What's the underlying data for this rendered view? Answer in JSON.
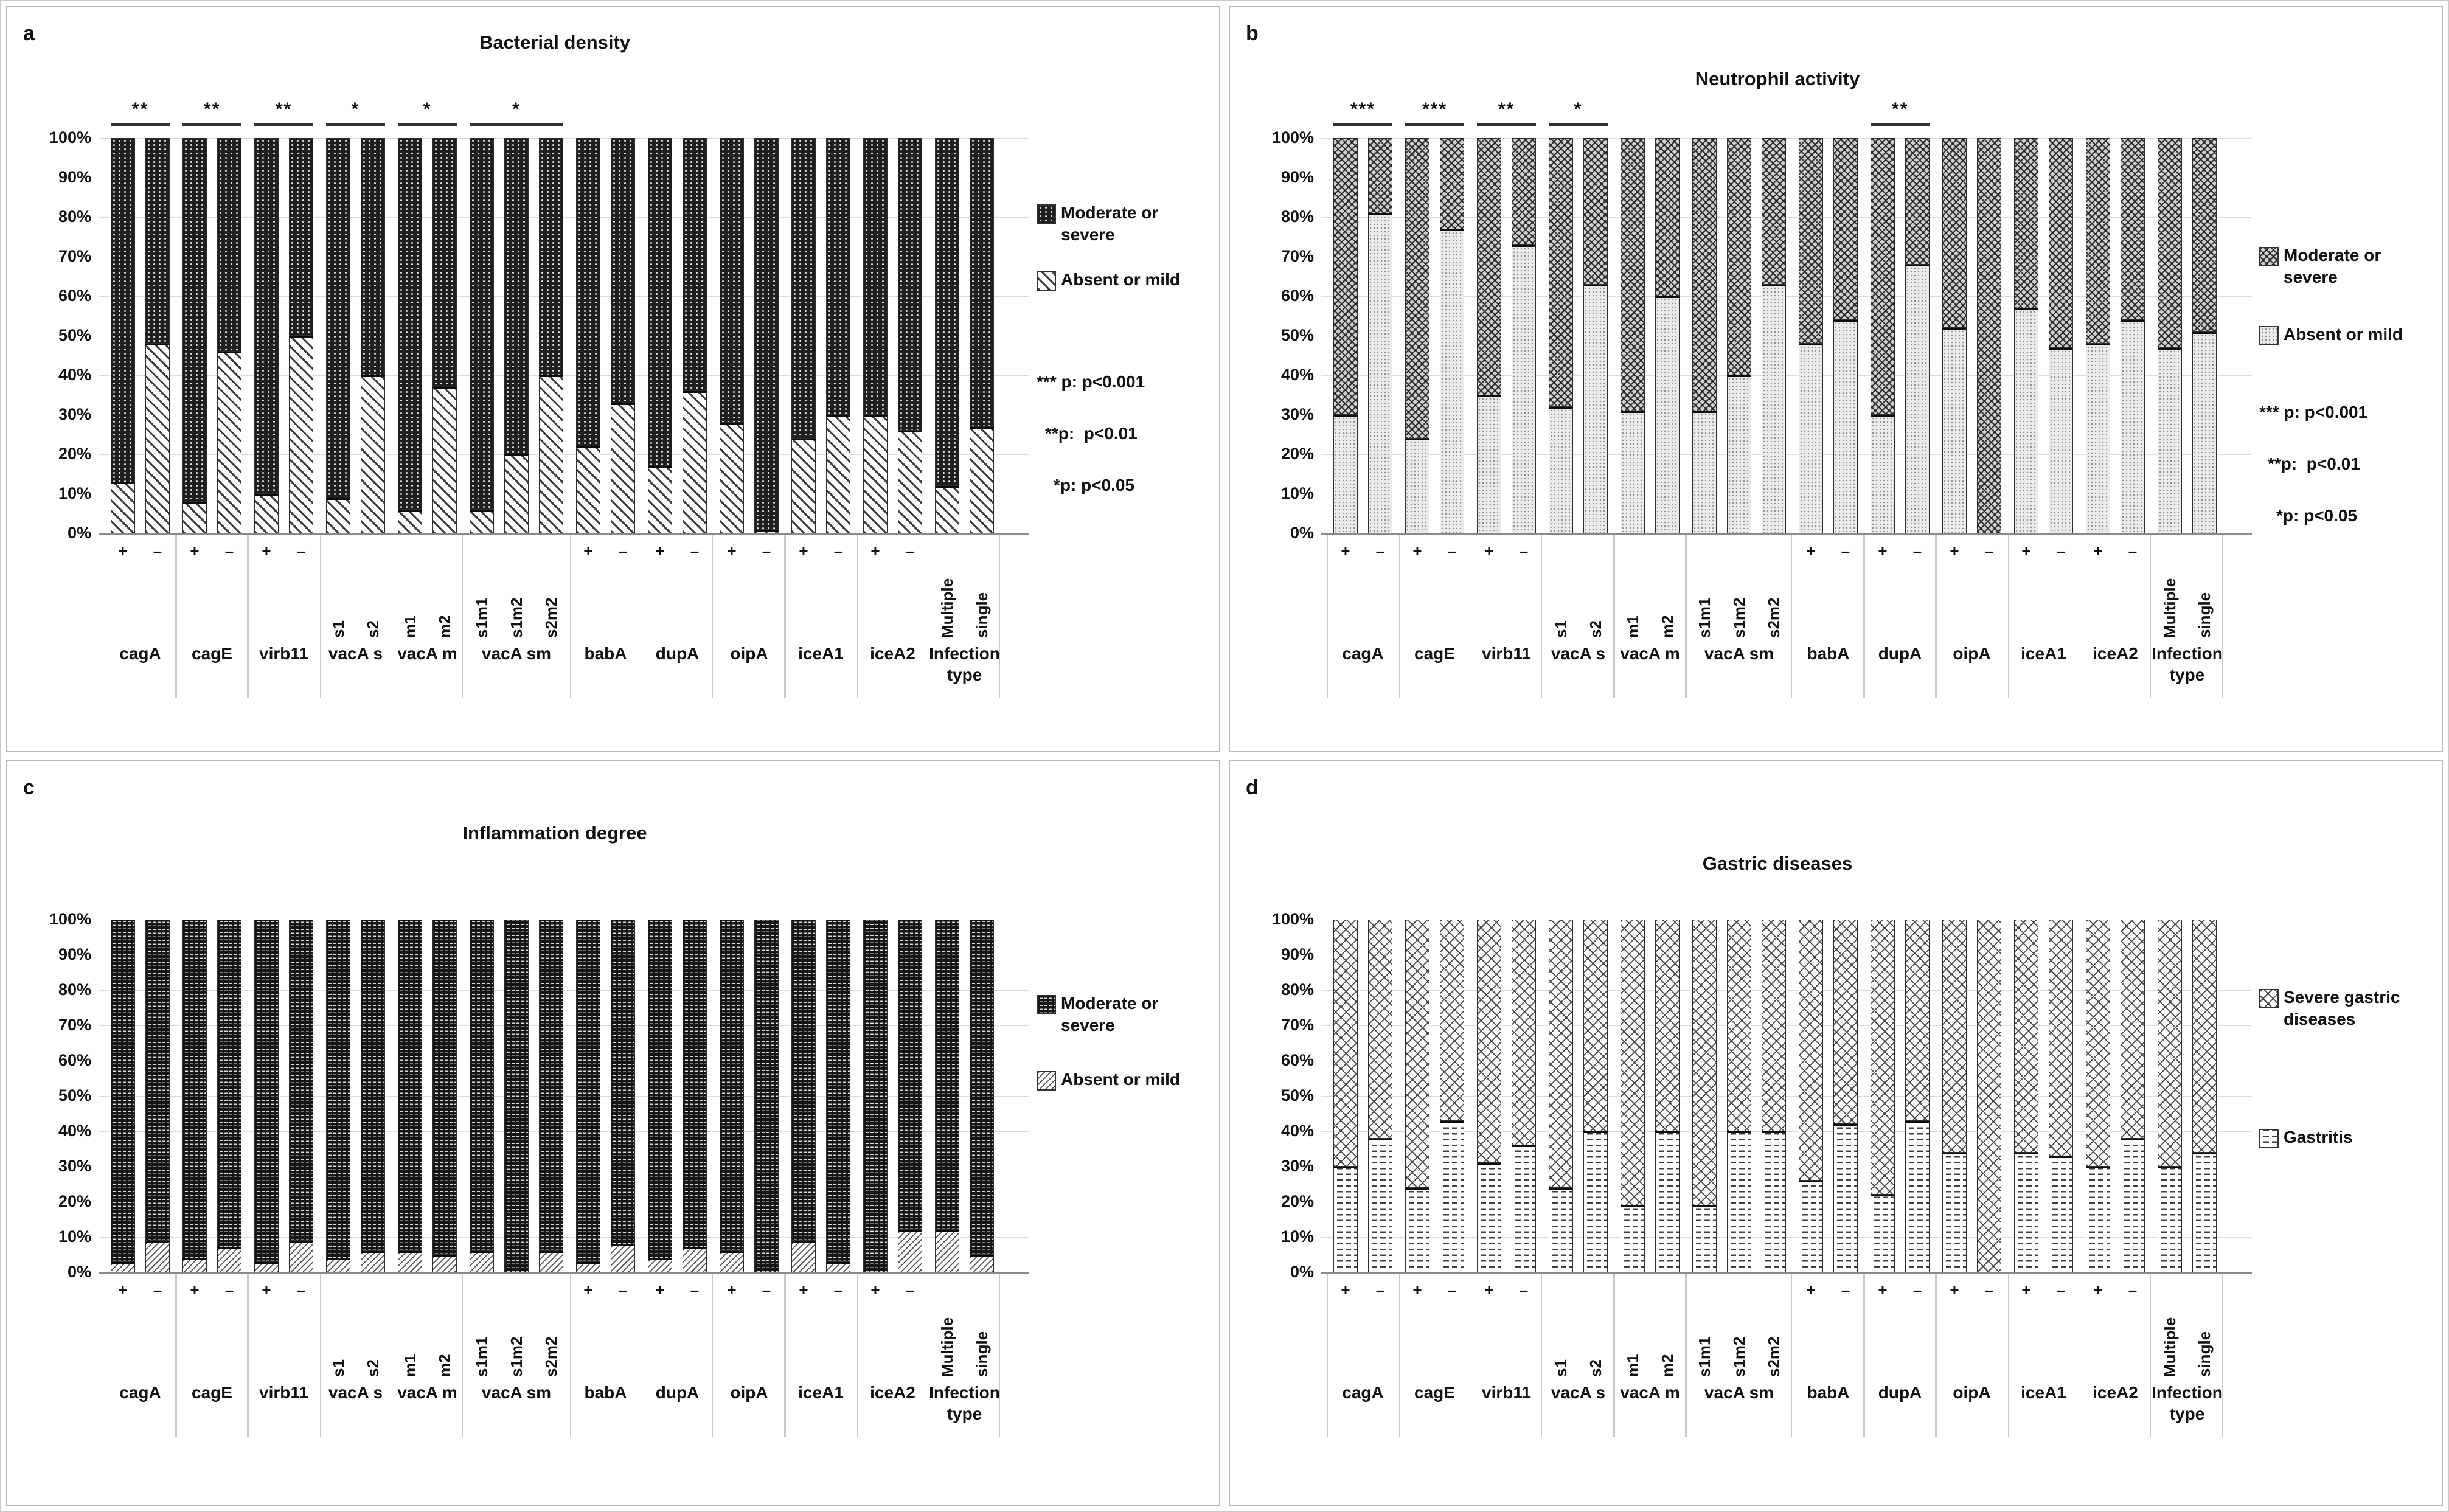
{
  "figure": {
    "description": "Four stacked bar chart panels comparing H. pylori genotypes",
    "y_ticks": [
      "100%",
      "90%",
      "80%",
      "70%",
      "60%",
      "50%",
      "40%",
      "30%",
      "20%",
      "10%",
      "0%"
    ],
    "stats_notes": [
      "*** p: p<0.001",
      "**p:  p<0.01",
      "*p: p<0.05"
    ]
  },
  "chart_data": [
    {
      "panel": "a",
      "type": "bar",
      "stacked": true,
      "title": "Bacterial density",
      "ylim": [
        0,
        100
      ],
      "ytick_step": 10,
      "grid": true,
      "legend_position": "right",
      "categories": [
        "cagA +",
        "cagA -",
        "cagE +",
        "cagE -",
        "virb11 +",
        "virb11 -",
        "vacA s s1",
        "vacA s s2",
        "vacA m m1",
        "vacA m m2",
        "vacA sm s1m1",
        "vacA sm s1m2",
        "vacA sm s2m2",
        "babA +",
        "babA -",
        "dupA +",
        "dupA -",
        "oipA +",
        "oipA -",
        "iceA1 +",
        "iceA1 -",
        "iceA2 +",
        "iceA2 -",
        "Multiple",
        "single"
      ],
      "groups": [
        {
          "label": "cagA",
          "subs": [
            "+",
            "–"
          ]
        },
        {
          "label": "cagE",
          "subs": [
            "+",
            "–"
          ]
        },
        {
          "label": "virb11",
          "subs": [
            "+",
            "–"
          ]
        },
        {
          "label": "vacA s",
          "subs": [
            "s1",
            "s2"
          ]
        },
        {
          "label": "vacA m",
          "subs": [
            "m1",
            "m2"
          ]
        },
        {
          "label": "vacA sm",
          "subs": [
            "s1m1",
            "s1m2",
            "s2m2"
          ]
        },
        {
          "label": "babA",
          "subs": [
            "+",
            "–"
          ]
        },
        {
          "label": "dupA",
          "subs": [
            "+",
            "–"
          ]
        },
        {
          "label": "oipA",
          "subs": [
            "+",
            "–"
          ]
        },
        {
          "label": "iceA1",
          "subs": [
            "+",
            "–"
          ]
        },
        {
          "label": "iceA2",
          "subs": [
            "+",
            "–"
          ]
        },
        {
          "label": "Infection type",
          "subs": [
            "Multiple",
            "single"
          ]
        }
      ],
      "series": [
        {
          "name": "Absent or mild",
          "pattern": "diag-hatch",
          "values": [
            13,
            48,
            8,
            46,
            10,
            50,
            9,
            40,
            6,
            37,
            6,
            20,
            40,
            22,
            33,
            17,
            36,
            28,
            1,
            24,
            30,
            30,
            26,
            12,
            27
          ]
        },
        {
          "name": "Moderate or severe",
          "pattern": "dark-dotted",
          "values": [
            87,
            52,
            92,
            54,
            90,
            50,
            91,
            60,
            94,
            63,
            94,
            80,
            60,
            78,
            67,
            83,
            64,
            72,
            99,
            76,
            70,
            70,
            74,
            88,
            73
          ]
        }
      ],
      "legend": [
        {
          "pattern": "dark-dotted",
          "label": "Moderate or severe"
        },
        {
          "pattern": "diag-hatch",
          "label": "Absent or mild"
        }
      ],
      "stats_notes": [
        "*** p: p<0.001",
        "**p:  p<0.01",
        "*p: p<0.05"
      ],
      "significance": [
        {
          "stars": "**",
          "from": 0,
          "to": 1
        },
        {
          "stars": "**",
          "from": 2,
          "to": 3
        },
        {
          "stars": "**",
          "from": 4,
          "to": 5
        },
        {
          "stars": "*",
          "from": 6,
          "to": 7
        },
        {
          "stars": "*",
          "from": 8,
          "to": 9
        },
        {
          "stars": "*",
          "from": 10,
          "to": 12
        }
      ]
    },
    {
      "panel": "b",
      "type": "bar",
      "stacked": true,
      "title": "Neutrophil activity",
      "ylim": [
        0,
        100
      ],
      "ytick_step": 10,
      "grid": true,
      "legend_position": "right",
      "categories": [
        "cagA +",
        "cagA -",
        "cagE +",
        "cagE -",
        "virb11 +",
        "virb11 -",
        "vacA s s1",
        "vacA s s2",
        "vacA m m1",
        "vacA m m2",
        "vacA sm s1m1",
        "vacA sm s1m2",
        "vacA sm s2m2",
        "babA +",
        "babA -",
        "dupA +",
        "dupA -",
        "oipA +",
        "oipA -",
        "iceA1 +",
        "iceA1 -",
        "iceA2 +",
        "iceA2 -",
        "Multiple",
        "single"
      ],
      "groups": [
        {
          "label": "cagA",
          "subs": [
            "+",
            "–"
          ]
        },
        {
          "label": "cagE",
          "subs": [
            "+",
            "–"
          ]
        },
        {
          "label": "virb11",
          "subs": [
            "+",
            "–"
          ]
        },
        {
          "label": "vacA s",
          "subs": [
            "s1",
            "s2"
          ]
        },
        {
          "label": "vacA m",
          "subs": [
            "m1",
            "m2"
          ]
        },
        {
          "label": "vacA sm",
          "subs": [
            "s1m1",
            "s1m2",
            "s2m2"
          ]
        },
        {
          "label": "babA",
          "subs": [
            "+",
            "–"
          ]
        },
        {
          "label": "dupA",
          "subs": [
            "+",
            "–"
          ]
        },
        {
          "label": "oipA",
          "subs": [
            "+",
            "–"
          ]
        },
        {
          "label": "iceA1",
          "subs": [
            "+",
            "–"
          ]
        },
        {
          "label": "iceA2",
          "subs": [
            "+",
            "–"
          ]
        },
        {
          "label": "Infection type",
          "subs": [
            "Multiple",
            "single"
          ]
        }
      ],
      "series": [
        {
          "name": "Absent or mild",
          "pattern": "light-dotted",
          "values": [
            30,
            81,
            24,
            77,
            35,
            73,
            32,
            63,
            31,
            60,
            31,
            40,
            63,
            48,
            54,
            30,
            68,
            52,
            0,
            57,
            47,
            48,
            54,
            47,
            51
          ]
        },
        {
          "name": "Moderate or severe",
          "pattern": "diamond-check",
          "values": [
            70,
            19,
            76,
            23,
            65,
            27,
            68,
            37,
            69,
            40,
            69,
            60,
            37,
            52,
            46,
            70,
            32,
            48,
            100,
            43,
            53,
            52,
            46,
            53,
            49
          ]
        }
      ],
      "legend": [
        {
          "pattern": "diamond-check",
          "label": "Moderate or severe"
        },
        {
          "pattern": "light-dotted",
          "label": "Absent or mild"
        }
      ],
      "stats_notes": [
        "*** p: p<0.001",
        "**p:  p<0.01",
        "*p: p<0.05"
      ],
      "significance": [
        {
          "stars": "***",
          "from": 0,
          "to": 1
        },
        {
          "stars": "***",
          "from": 2,
          "to": 3
        },
        {
          "stars": "**",
          "from": 4,
          "to": 5
        },
        {
          "stars": "*",
          "from": 6,
          "to": 7
        },
        {
          "stars": "**",
          "from": 15,
          "to": 16
        }
      ]
    },
    {
      "panel": "c",
      "type": "bar",
      "stacked": true,
      "title": "Inflammation degree",
      "ylim": [
        0,
        100
      ],
      "ytick_step": 10,
      "grid": true,
      "legend_position": "right",
      "categories": [
        "cagA +",
        "cagA -",
        "cagE +",
        "cagE -",
        "virb11 +",
        "virb11 -",
        "vacA s s1",
        "vacA s s2",
        "vacA m m1",
        "vacA m m2",
        "vacA sm s1m1",
        "vacA sm s1m2",
        "vacA sm s2m2",
        "babA +",
        "babA -",
        "dupA +",
        "dupA -",
        "oipA +",
        "oipA -",
        "iceA1 +",
        "iceA1 -",
        "iceA2 +",
        "iceA2 -",
        "Multiple",
        "single"
      ],
      "groups": [
        {
          "label": "cagA",
          "subs": [
            "+",
            "–"
          ]
        },
        {
          "label": "cagE",
          "subs": [
            "+",
            "–"
          ]
        },
        {
          "label": "virb11",
          "subs": [
            "+",
            "–"
          ]
        },
        {
          "label": "vacA s",
          "subs": [
            "s1",
            "s2"
          ]
        },
        {
          "label": "vacA m",
          "subs": [
            "m1",
            "m2"
          ]
        },
        {
          "label": "vacA sm",
          "subs": [
            "s1m1",
            "s1m2",
            "s2m2"
          ]
        },
        {
          "label": "babA",
          "subs": [
            "+",
            "–"
          ]
        },
        {
          "label": "dupA",
          "subs": [
            "+",
            "–"
          ]
        },
        {
          "label": "oipA",
          "subs": [
            "+",
            "–"
          ]
        },
        {
          "label": "iceA1",
          "subs": [
            "+",
            "–"
          ]
        },
        {
          "label": "iceA2",
          "subs": [
            "+",
            "–"
          ]
        },
        {
          "label": "Infection type",
          "subs": [
            "Multiple",
            "single"
          ]
        }
      ],
      "series": [
        {
          "name": "Absent or mild",
          "pattern": "fine-hatch",
          "values": [
            3,
            9,
            4,
            7,
            3,
            9,
            4,
            6,
            6,
            5,
            6,
            0,
            6,
            3,
            8,
            4,
            7,
            6,
            0,
            9,
            3,
            0,
            12,
            12,
            5
          ]
        },
        {
          "name": "Moderate or severe",
          "pattern": "dark-dashed",
          "values": [
            97,
            91,
            96,
            93,
            97,
            91,
            96,
            94,
            94,
            95,
            94,
            100,
            94,
            97,
            92,
            96,
            93,
            94,
            100,
            91,
            97,
            100,
            88,
            88,
            95
          ]
        }
      ],
      "legend": [
        {
          "pattern": "dark-dashed",
          "label": "Moderate or severe"
        },
        {
          "pattern": "fine-hatch",
          "label": "Absent or mild"
        }
      ],
      "stats_notes": [],
      "significance": []
    },
    {
      "panel": "d",
      "type": "bar",
      "stacked": true,
      "title": "Gastric diseases",
      "ylim": [
        0,
        100
      ],
      "ytick_step": 10,
      "grid": true,
      "legend_position": "right",
      "categories": [
        "cagA +",
        "cagA -",
        "cagE +",
        "cagE -",
        "virb11 +",
        "virb11 -",
        "vacA s s1",
        "vacA s s2",
        "vacA m m1",
        "vacA m m2",
        "vacA sm s1m1",
        "vacA sm s1m2",
        "vacA sm s2m2",
        "babA +",
        "babA -",
        "dupA +",
        "dupA -",
        "oipA +",
        "oipA -",
        "iceA1 +",
        "iceA1 -",
        "iceA2 +",
        "iceA2 -",
        "Multiple",
        "single"
      ],
      "groups": [
        {
          "label": "cagA",
          "subs": [
            "+",
            "–"
          ]
        },
        {
          "label": "cagE",
          "subs": [
            "+",
            "–"
          ]
        },
        {
          "label": "virb11",
          "subs": [
            "+",
            "–"
          ]
        },
        {
          "label": "vacA s",
          "subs": [
            "s1",
            "s2"
          ]
        },
        {
          "label": "vacA m",
          "subs": [
            "m1",
            "m2"
          ]
        },
        {
          "label": "vacA sm",
          "subs": [
            "s1m1",
            "s1m2",
            "s2m2"
          ]
        },
        {
          "label": "babA",
          "subs": [
            "+",
            "–"
          ]
        },
        {
          "label": "dupA",
          "subs": [
            "+",
            "–"
          ]
        },
        {
          "label": "oipA",
          "subs": [
            "+",
            "–"
          ]
        },
        {
          "label": "iceA1",
          "subs": [
            "+",
            "–"
          ]
        },
        {
          "label": "iceA2",
          "subs": [
            "+",
            "–"
          ]
        },
        {
          "label": "Infection type",
          "subs": [
            "Multiple",
            "single"
          ]
        }
      ],
      "series": [
        {
          "name": "Gastritis",
          "pattern": "dash-rows",
          "values": [
            30,
            38,
            24,
            43,
            31,
            36,
            24,
            40,
            19,
            40,
            19,
            40,
            40,
            26,
            42,
            22,
            43,
            34,
            0,
            34,
            33,
            30,
            38,
            30,
            34
          ]
        },
        {
          "name": "Severe gastric diseases",
          "pattern": "cross-hatch",
          "values": [
            70,
            62,
            76,
            57,
            69,
            64,
            76,
            60,
            81,
            60,
            81,
            60,
            60,
            74,
            58,
            78,
            57,
            66,
            100,
            66,
            67,
            70,
            62,
            70,
            66
          ]
        }
      ],
      "legend": [
        {
          "pattern": "cross-hatch",
          "label": "Severe gastric diseases"
        },
        {
          "pattern": "dash-rows",
          "label": "Gastritis"
        }
      ],
      "stats_notes": [],
      "significance": []
    }
  ]
}
